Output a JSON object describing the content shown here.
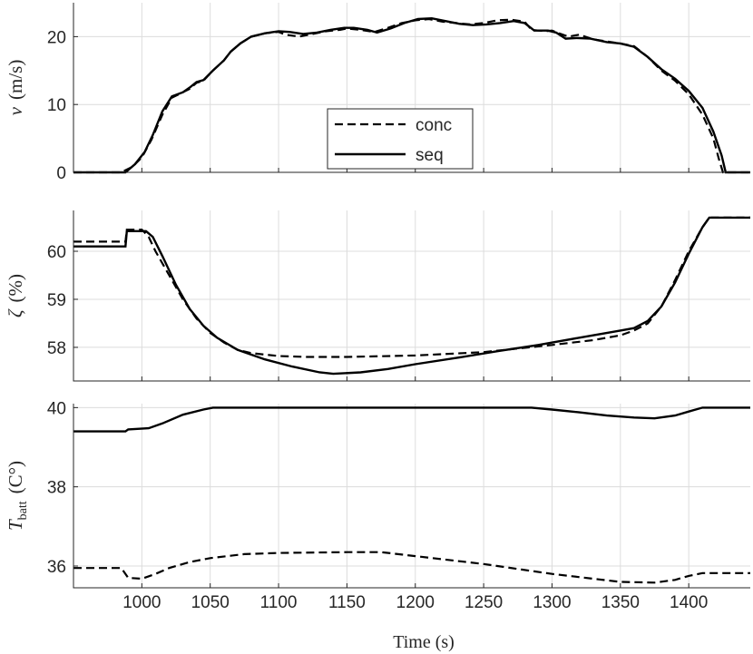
{
  "chart_data": [
    {
      "type": "line",
      "ylabel_var": "v",
      "ylabel_unit": "(m/s)",
      "xlim": [
        950,
        1445
      ],
      "ylim": [
        0,
        25
      ],
      "yticks": [
        0,
        10,
        20
      ],
      "legend": {
        "position": "center",
        "entries": [
          "conc",
          "seq"
        ]
      },
      "grid": true,
      "series": [
        {
          "name": "conc",
          "style": "dashed",
          "points": [
            [
              950,
              0
            ],
            [
              985,
              0
            ],
            [
              993,
              0.8
            ],
            [
              1000,
              2.2
            ],
            [
              1007,
              4.8
            ],
            [
              1015,
              8.5
            ],
            [
              1022,
              11
            ],
            [
              1030,
              11.8
            ],
            [
              1035,
              12.3
            ],
            [
              1040,
              13.2
            ],
            [
              1045,
              13.5
            ],
            [
              1052,
              15
            ],
            [
              1060,
              16.5
            ],
            [
              1065,
              17.8
            ],
            [
              1072,
              19
            ],
            [
              1080,
              20
            ],
            [
              1090,
              20.5
            ],
            [
              1100,
              20.7
            ],
            [
              1105,
              20.3
            ],
            [
              1115,
              20
            ],
            [
              1125,
              20.4
            ],
            [
              1135,
              20.8
            ],
            [
              1145,
              21
            ],
            [
              1150,
              21.2
            ],
            [
              1160,
              21
            ],
            [
              1170,
              20.7
            ],
            [
              1180,
              21.3
            ],
            [
              1190,
              22
            ],
            [
              1200,
              22.4
            ],
            [
              1210,
              22.6
            ],
            [
              1220,
              22.2
            ],
            [
              1230,
              22
            ],
            [
              1240,
              21.8
            ],
            [
              1250,
              22
            ],
            [
              1260,
              22.4
            ],
            [
              1270,
              22.5
            ],
            [
              1280,
              22.2
            ],
            [
              1285,
              21
            ],
            [
              1295,
              20.8
            ],
            [
              1300,
              20.9
            ],
            [
              1305,
              20.5
            ],
            [
              1312,
              20
            ],
            [
              1320,
              20.3
            ],
            [
              1330,
              19.6
            ],
            [
              1340,
              19.3
            ],
            [
              1350,
              19
            ],
            [
              1360,
              18.6
            ],
            [
              1370,
              17
            ],
            [
              1380,
              15
            ],
            [
              1390,
              13.5
            ],
            [
              1400,
              11.5
            ],
            [
              1410,
              8.5
            ],
            [
              1418,
              5
            ],
            [
              1422,
              2
            ],
            [
              1425,
              0
            ],
            [
              1445,
              0
            ]
          ]
        },
        {
          "name": "seq",
          "style": "solid",
          "points": [
            [
              950,
              0
            ],
            [
              988,
              0
            ],
            [
              995,
              1.2
            ],
            [
              1002,
              3
            ],
            [
              1008,
              5.5
            ],
            [
              1015,
              9
            ],
            [
              1022,
              11.2
            ],
            [
              1030,
              11.8
            ],
            [
              1035,
              12.5
            ],
            [
              1040,
              13.3
            ],
            [
              1045,
              13.6
            ],
            [
              1052,
              15
            ],
            [
              1060,
              16.5
            ],
            [
              1065,
              17.8
            ],
            [
              1072,
              19
            ],
            [
              1080,
              20
            ],
            [
              1090,
              20.5
            ],
            [
              1100,
              20.8
            ],
            [
              1108,
              20.7
            ],
            [
              1118,
              20.4
            ],
            [
              1128,
              20.6
            ],
            [
              1138,
              21
            ],
            [
              1148,
              21.3
            ],
            [
              1155,
              21.3
            ],
            [
              1165,
              21
            ],
            [
              1172,
              20.6
            ],
            [
              1182,
              21.2
            ],
            [
              1192,
              22
            ],
            [
              1202,
              22.6
            ],
            [
              1212,
              22.7
            ],
            [
              1222,
              22.3
            ],
            [
              1232,
              21.9
            ],
            [
              1242,
              21.7
            ],
            [
              1252,
              21.8
            ],
            [
              1262,
              22
            ],
            [
              1272,
              22.3
            ],
            [
              1280,
              22
            ],
            [
              1287,
              20.9
            ],
            [
              1297,
              20.9
            ],
            [
              1303,
              20.6
            ],
            [
              1310,
              19.7
            ],
            [
              1318,
              19.8
            ],
            [
              1328,
              19.7
            ],
            [
              1340,
              19.2
            ],
            [
              1350,
              19
            ],
            [
              1360,
              18.5
            ],
            [
              1370,
              17
            ],
            [
              1380,
              15.2
            ],
            [
              1390,
              13.8
            ],
            [
              1400,
              12
            ],
            [
              1410,
              9.5
            ],
            [
              1418,
              6
            ],
            [
              1424,
              2.5
            ],
            [
              1427,
              0
            ],
            [
              1445,
              0
            ]
          ]
        }
      ]
    },
    {
      "type": "line",
      "ylabel_var": "ζ",
      "ylabel_unit": "(%)",
      "xlim": [
        950,
        1445
      ],
      "ylim": [
        57.3,
        60.85
      ],
      "yticks": [
        58,
        59,
        60
      ],
      "grid": true,
      "series": [
        {
          "name": "conc",
          "style": "dashed",
          "points": [
            [
              950,
              60.2
            ],
            [
              988,
              60.2
            ],
            [
              989,
              60.45
            ],
            [
              1000,
              60.45
            ],
            [
              1005,
              60.3
            ],
            [
              1010,
              60
            ],
            [
              1020,
              59.5
            ],
            [
              1030,
              59
            ],
            [
              1040,
              58.6
            ],
            [
              1050,
              58.3
            ],
            [
              1060,
              58.1
            ],
            [
              1070,
              57.95
            ],
            [
              1080,
              57.88
            ],
            [
              1090,
              57.85
            ],
            [
              1100,
              57.82
            ],
            [
              1120,
              57.8
            ],
            [
              1150,
              57.8
            ],
            [
              1200,
              57.83
            ],
            [
              1250,
              57.9
            ],
            [
              1300,
              58.05
            ],
            [
              1330,
              58.15
            ],
            [
              1350,
              58.25
            ],
            [
              1360,
              58.35
            ],
            [
              1370,
              58.5
            ],
            [
              1380,
              58.85
            ],
            [
              1390,
              59.4
            ],
            [
              1400,
              60
            ],
            [
              1410,
              60.5
            ],
            [
              1415,
              60.7
            ],
            [
              1445,
              60.7
            ]
          ]
        },
        {
          "name": "seq",
          "style": "solid",
          "points": [
            [
              950,
              60.1
            ],
            [
              988,
              60.1
            ],
            [
              989,
              60.42
            ],
            [
              1003,
              60.42
            ],
            [
              1008,
              60.3
            ],
            [
              1015,
              59.9
            ],
            [
              1025,
              59.3
            ],
            [
              1035,
              58.8
            ],
            [
              1045,
              58.45
            ],
            [
              1055,
              58.2
            ],
            [
              1070,
              57.95
            ],
            [
              1090,
              57.75
            ],
            [
              1110,
              57.6
            ],
            [
              1130,
              57.48
            ],
            [
              1140,
              57.45
            ],
            [
              1160,
              57.48
            ],
            [
              1180,
              57.55
            ],
            [
              1200,
              57.65
            ],
            [
              1230,
              57.78
            ],
            [
              1260,
              57.92
            ],
            [
              1290,
              58.05
            ],
            [
              1320,
              58.2
            ],
            [
              1350,
              58.35
            ],
            [
              1360,
              58.4
            ],
            [
              1370,
              58.55
            ],
            [
              1380,
              58.85
            ],
            [
              1390,
              59.35
            ],
            [
              1400,
              59.95
            ],
            [
              1410,
              60.5
            ],
            [
              1415,
              60.7
            ],
            [
              1445,
              60.7
            ]
          ]
        }
      ]
    },
    {
      "type": "line",
      "ylabel_var": "T",
      "ylabel_sub": "batt",
      "ylabel_unit": "(C°)",
      "xlim": [
        950,
        1445
      ],
      "ylim": [
        35.45,
        40.1
      ],
      "yticks": [
        36,
        38,
        40
      ],
      "xticks": [
        1000,
        1050,
        1100,
        1150,
        1200,
        1250,
        1300,
        1350,
        1400
      ],
      "xlabel": "Time (s)",
      "grid": true,
      "series": [
        {
          "name": "conc",
          "style": "dashed",
          "points": [
            [
              950,
              35.95
            ],
            [
              985,
              35.95
            ],
            [
              990,
              35.7
            ],
            [
              1000,
              35.68
            ],
            [
              1010,
              35.8
            ],
            [
              1020,
              35.95
            ],
            [
              1035,
              36.1
            ],
            [
              1050,
              36.2
            ],
            [
              1075,
              36.3
            ],
            [
              1100,
              36.33
            ],
            [
              1150,
              36.35
            ],
            [
              1175,
              36.35
            ],
            [
              1200,
              36.25
            ],
            [
              1250,
              36.05
            ],
            [
              1300,
              35.8
            ],
            [
              1350,
              35.6
            ],
            [
              1375,
              35.58
            ],
            [
              1390,
              35.65
            ],
            [
              1400,
              35.75
            ],
            [
              1410,
              35.82
            ],
            [
              1445,
              35.82
            ]
          ]
        },
        {
          "name": "seq",
          "style": "solid",
          "points": [
            [
              950,
              39.4
            ],
            [
              988,
              39.4
            ],
            [
              990,
              39.45
            ],
            [
              1005,
              39.48
            ],
            [
              1015,
              39.6
            ],
            [
              1030,
              39.82
            ],
            [
              1045,
              39.95
            ],
            [
              1052,
              40
            ],
            [
              1100,
              40
            ],
            [
              1200,
              40
            ],
            [
              1285,
              40
            ],
            [
              1300,
              39.95
            ],
            [
              1320,
              39.88
            ],
            [
              1340,
              39.8
            ],
            [
              1360,
              39.75
            ],
            [
              1375,
              39.73
            ],
            [
              1390,
              39.8
            ],
            [
              1400,
              39.9
            ],
            [
              1410,
              40
            ],
            [
              1445,
              40
            ]
          ]
        }
      ]
    }
  ]
}
